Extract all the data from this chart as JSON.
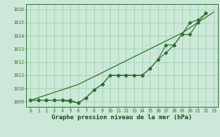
{
  "title": "Graphe pression niveau de la mer (hPa)",
  "x": [
    0,
    1,
    2,
    3,
    4,
    5,
    6,
    7,
    8,
    9,
    10,
    11,
    12,
    13,
    14,
    15,
    16,
    17,
    18,
    19,
    20,
    21,
    22,
    23
  ],
  "line_smooth": [
    1009.1,
    1009.3,
    1009.5,
    1009.7,
    1009.9,
    1010.1,
    1010.3,
    1010.6,
    1010.9,
    1011.2,
    1011.5,
    1011.8,
    1012.1,
    1012.4,
    1012.7,
    1013.0,
    1013.3,
    1013.6,
    1013.9,
    1014.2,
    1014.6,
    1015.0,
    1015.4,
    1015.8
  ],
  "line_markers1": [
    1009.1,
    1009.1,
    1009.1,
    1009.1,
    1009.1,
    1009.1,
    1008.9,
    1009.3,
    1009.9,
    1010.3,
    1011.0,
    1011.0,
    1011.0,
    1011.0,
    1011.0,
    1011.5,
    1012.2,
    1012.7,
    1013.3,
    1014.1,
    1015.0,
    1015.2,
    1015.7,
    null
  ],
  "line_markers2": [
    1009.1,
    1009.1,
    1009.1,
    1009.1,
    1009.1,
    1009.0,
    1008.9,
    1009.3,
    1009.9,
    1010.3,
    1011.0,
    1011.0,
    1011.0,
    1011.0,
    1011.0,
    1011.5,
    1012.2,
    1013.3,
    1013.3,
    1014.1,
    1014.1,
    1015.0,
    1015.7,
    null
  ],
  "ylim_min": 1008.6,
  "ylim_max": 1016.4,
  "yticks": [
    1009,
    1010,
    1011,
    1012,
    1013,
    1014,
    1015,
    1016
  ],
  "bg_color": "#cce8d8",
  "grid_color": "#99ccaa",
  "line_color": "#2d6e2d",
  "title_fontsize": 6.5,
  "tick_fontsize": 4.8
}
